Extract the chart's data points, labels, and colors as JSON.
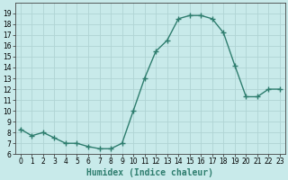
{
  "title": "",
  "xlabel": "Humidex (Indice chaleur)",
  "x": [
    0,
    1,
    2,
    3,
    4,
    5,
    6,
    7,
    8,
    9,
    10,
    11,
    12,
    13,
    14,
    15,
    16,
    17,
    18,
    19,
    20,
    21,
    22,
    23
  ],
  "y": [
    8.3,
    7.7,
    8.0,
    7.5,
    7.0,
    7.0,
    6.7,
    6.5,
    6.5,
    7.0,
    10.0,
    13.0,
    15.5,
    16.5,
    18.5,
    18.8,
    18.8,
    18.5,
    17.2,
    14.2,
    11.3,
    11.3,
    12.0,
    12.0
  ],
  "line_color": "#2e7d6e",
  "marker": "+",
  "marker_size": 4,
  "marker_linewidth": 1.0,
  "bg_color": "#c8eaea",
  "grid_color": "#b0d4d4",
  "ylim": [
    6,
    20
  ],
  "xlim": [
    -0.5,
    23.5
  ],
  "yticks": [
    6,
    7,
    8,
    9,
    10,
    11,
    12,
    13,
    14,
    15,
    16,
    17,
    18,
    19
  ],
  "xticks": [
    0,
    1,
    2,
    3,
    4,
    5,
    6,
    7,
    8,
    9,
    10,
    11,
    12,
    13,
    14,
    15,
    16,
    17,
    18,
    19,
    20,
    21,
    22,
    23
  ],
  "tick_fontsize": 5.5,
  "xlabel_fontsize": 7,
  "line_width": 1.0
}
